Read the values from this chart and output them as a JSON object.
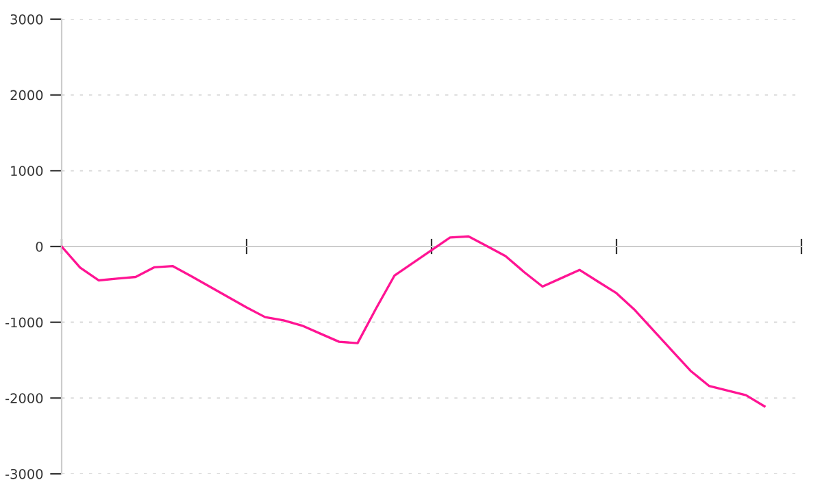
{
  "chart_data": {
    "type": "line",
    "categories": [
      null,
      null,
      null,
      null,
      null,
      null,
      null,
      null,
      null,
      null,
      null,
      null,
      null,
      null,
      null,
      null,
      null,
      null,
      null,
      null,
      null,
      null,
      null,
      null,
      null,
      null,
      null,
      null,
      null,
      null,
      null,
      null,
      null,
      null,
      null,
      null,
      null,
      null,
      null
    ],
    "series": [
      {
        "color": "#ff1493",
        "values": [
          0,
          -279,
          -447,
          -424,
          -402,
          -275,
          -258,
          -391,
          -529,
          -667,
          -804,
          -932,
          -975,
          -1044,
          -1151,
          -1257,
          -1275,
          -817,
          -382,
          -215,
          -48,
          119,
          133,
          4,
          -126,
          -336,
          -529,
          -419,
          -309,
          -463,
          -616,
          -841,
          -1107,
          -1374,
          -1640,
          -1839,
          -1900,
          -1962,
          -2109
        ]
      }
    ],
    "ylim": [
      -3000,
      3000
    ],
    "yticks": [
      -3000,
      -2000,
      -1000,
      0,
      1000,
      2000,
      3000
    ],
    "tick_labels": "y",
    "grid": "y",
    "marker": "none",
    "line_style": "solid"
  }
}
